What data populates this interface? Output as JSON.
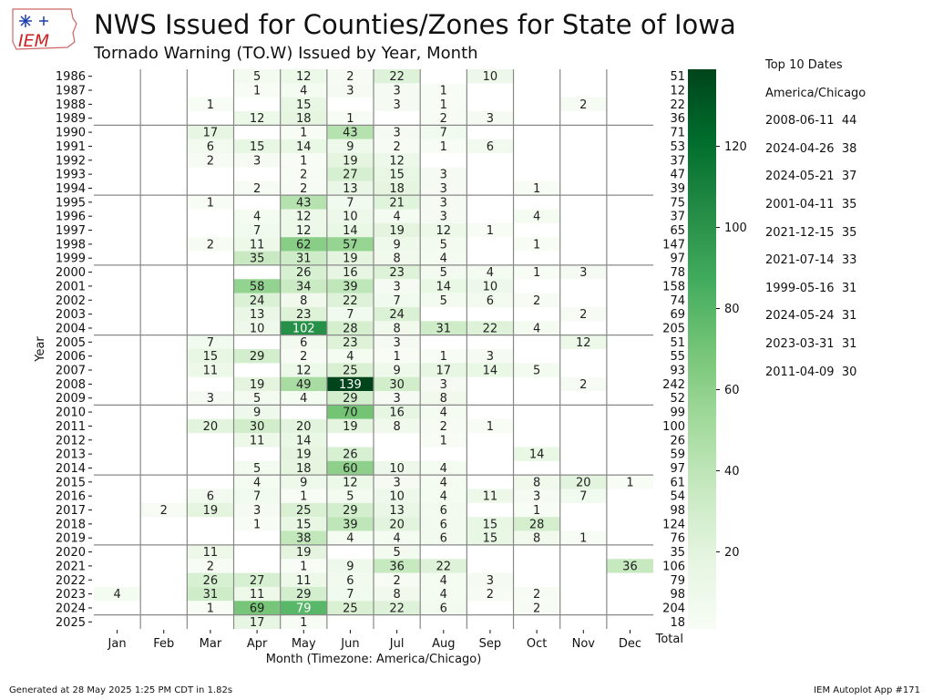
{
  "title": "NWS Issued for Counties/Zones for State of Iowa",
  "subtitle": "Tornado Warning (TO.W) Issued by Year, Month",
  "logo_text": "IEM",
  "top10": {
    "heading": "Top 10 Dates",
    "timezone": "America/Chicago",
    "items": [
      "2008-06-11  44",
      "2024-04-26  38",
      "2024-05-21  37",
      "2001-04-11  35",
      "2021-12-15  35",
      "2021-07-14  33",
      "1999-05-16  31",
      "2024-05-24  31",
      "2023-03-31  31",
      "2011-04-09  30"
    ]
  },
  "footer": {
    "left": "Generated at 28 May 2025 1:25 PM CDT in 1.82s",
    "right": "IEM Autoplot App #171"
  },
  "chart_data": {
    "type": "heatmap",
    "xlabel": "Month (Timezone: America/Chicago)",
    "ylabel": "Year",
    "total_label": "Total",
    "months": [
      "Jan",
      "Feb",
      "Mar",
      "Apr",
      "May",
      "Jun",
      "Jul",
      "Aug",
      "Sep",
      "Oct",
      "Nov",
      "Dec"
    ],
    "years": [
      1986,
      1987,
      1988,
      1989,
      1990,
      1991,
      1992,
      1993,
      1994,
      1995,
      1996,
      1997,
      1998,
      1999,
      2000,
      2001,
      2002,
      2003,
      2004,
      2005,
      2006,
      2007,
      2008,
      2009,
      2010,
      2011,
      2012,
      2013,
      2014,
      2015,
      2016,
      2017,
      2018,
      2019,
      2020,
      2021,
      2022,
      2023,
      2024,
      2025
    ],
    "values": [
      [
        null,
        null,
        null,
        5,
        12,
        2,
        22,
        null,
        10,
        null,
        null,
        null
      ],
      [
        null,
        null,
        null,
        1,
        4,
        3,
        3,
        1,
        null,
        null,
        null,
        null
      ],
      [
        null,
        null,
        1,
        null,
        15,
        null,
        3,
        1,
        null,
        null,
        2,
        null
      ],
      [
        null,
        null,
        null,
        12,
        18,
        1,
        null,
        2,
        3,
        null,
        null,
        null
      ],
      [
        null,
        null,
        17,
        null,
        1,
        43,
        3,
        7,
        null,
        null,
        null,
        null
      ],
      [
        null,
        null,
        6,
        15,
        14,
        9,
        2,
        1,
        6,
        null,
        null,
        null
      ],
      [
        null,
        null,
        2,
        3,
        1,
        19,
        12,
        null,
        null,
        null,
        null,
        null
      ],
      [
        null,
        null,
        null,
        null,
        2,
        27,
        15,
        3,
        null,
        null,
        null,
        null
      ],
      [
        null,
        null,
        null,
        2,
        2,
        13,
        18,
        3,
        null,
        1,
        null,
        null
      ],
      [
        null,
        null,
        1,
        null,
        43,
        7,
        21,
        3,
        null,
        null,
        null,
        null
      ],
      [
        null,
        null,
        null,
        4,
        12,
        10,
        4,
        3,
        null,
        4,
        null,
        null
      ],
      [
        null,
        null,
        null,
        7,
        12,
        14,
        19,
        12,
        1,
        null,
        null,
        null
      ],
      [
        null,
        null,
        2,
        11,
        62,
        57,
        9,
        5,
        null,
        1,
        null,
        null
      ],
      [
        null,
        null,
        null,
        35,
        31,
        19,
        8,
        4,
        null,
        null,
        null,
        null
      ],
      [
        null,
        null,
        null,
        null,
        26,
        16,
        23,
        5,
        4,
        1,
        3,
        null
      ],
      [
        null,
        null,
        null,
        58,
        34,
        39,
        3,
        14,
        10,
        null,
        null,
        null
      ],
      [
        null,
        null,
        null,
        24,
        8,
        22,
        7,
        5,
        6,
        2,
        null,
        null
      ],
      [
        null,
        null,
        null,
        13,
        23,
        7,
        24,
        null,
        null,
        null,
        2,
        null
      ],
      [
        null,
        null,
        null,
        10,
        102,
        28,
        8,
        31,
        22,
        4,
        null,
        null
      ],
      [
        null,
        null,
        7,
        null,
        6,
        23,
        3,
        null,
        null,
        null,
        12,
        null
      ],
      [
        null,
        null,
        15,
        29,
        2,
        4,
        1,
        1,
        3,
        null,
        null,
        null
      ],
      [
        null,
        null,
        11,
        null,
        12,
        25,
        9,
        17,
        14,
        5,
        null,
        null
      ],
      [
        null,
        null,
        null,
        19,
        49,
        139,
        30,
        3,
        null,
        null,
        2,
        null
      ],
      [
        null,
        null,
        3,
        5,
        4,
        29,
        3,
        8,
        null,
        null,
        null,
        null
      ],
      [
        null,
        null,
        null,
        9,
        null,
        70,
        16,
        4,
        null,
        null,
        null,
        null
      ],
      [
        null,
        null,
        20,
        30,
        20,
        19,
        8,
        2,
        1,
        null,
        null,
        null
      ],
      [
        null,
        null,
        null,
        11,
        14,
        null,
        null,
        1,
        null,
        null,
        null,
        null
      ],
      [
        null,
        null,
        null,
        null,
        19,
        26,
        null,
        null,
        null,
        14,
        null,
        null
      ],
      [
        null,
        null,
        null,
        5,
        18,
        60,
        10,
        4,
        null,
        null,
        null,
        null
      ],
      [
        null,
        null,
        null,
        4,
        9,
        12,
        3,
        4,
        null,
        8,
        20,
        1
      ],
      [
        null,
        null,
        6,
        7,
        1,
        5,
        10,
        4,
        11,
        3,
        7,
        null
      ],
      [
        null,
        2,
        19,
        3,
        25,
        29,
        13,
        6,
        null,
        1,
        null,
        null
      ],
      [
        null,
        null,
        null,
        1,
        15,
        39,
        20,
        6,
        15,
        28,
        null,
        null
      ],
      [
        null,
        null,
        null,
        null,
        38,
        4,
        4,
        6,
        15,
        8,
        1,
        null
      ],
      [
        null,
        null,
        11,
        null,
        19,
        null,
        5,
        null,
        null,
        null,
        null,
        null
      ],
      [
        null,
        null,
        2,
        null,
        1,
        9,
        36,
        22,
        null,
        null,
        null,
        36
      ],
      [
        null,
        null,
        26,
        27,
        11,
        6,
        2,
        4,
        3,
        null,
        null,
        null
      ],
      [
        4,
        null,
        31,
        11,
        29,
        7,
        8,
        4,
        2,
        2,
        null,
        null
      ],
      [
        null,
        null,
        1,
        69,
        79,
        25,
        22,
        6,
        null,
        2,
        null,
        null
      ],
      [
        null,
        null,
        null,
        17,
        1,
        null,
        null,
        null,
        null,
        null,
        null,
        null
      ]
    ],
    "totals": [
      51,
      12,
      22,
      36,
      71,
      53,
      37,
      47,
      39,
      75,
      37,
      65,
      147,
      97,
      78,
      158,
      74,
      69,
      205,
      51,
      55,
      93,
      242,
      52,
      99,
      100,
      26,
      59,
      97,
      61,
      54,
      98,
      124,
      76,
      35,
      106,
      79,
      98,
      204,
      18
    ],
    "colorbar": {
      "min": 1,
      "max": 139,
      "ticks": [
        20,
        40,
        60,
        80,
        100,
        120
      ],
      "low_color": "#f7fcf5",
      "high_color": "#00441b"
    }
  }
}
